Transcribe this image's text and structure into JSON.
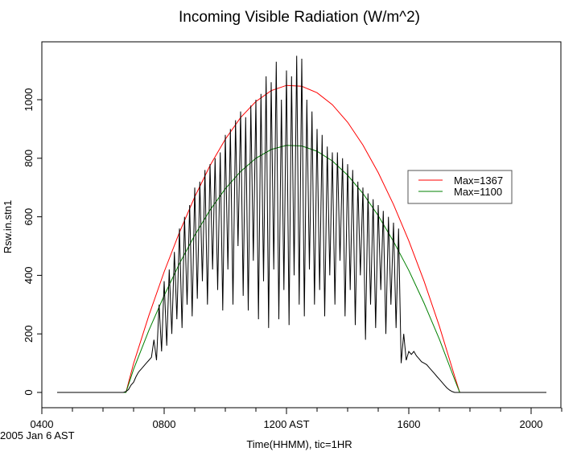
{
  "chart_data": {
    "type": "line",
    "title": "Incoming Visible Radiation (W/m^2)",
    "xlabel": "Time(HHMM), tic=1HR",
    "ylabel": "Rsw.in.stn1",
    "date_label": "2005 Jan  6 AST",
    "xlim": [
      "0400",
      "2100"
    ],
    "ylim": [
      -50,
      1200
    ],
    "x_tick_labels": [
      "0400",
      "0800",
      "1200 AST",
      "1600",
      "2000"
    ],
    "y_ticks": [
      0,
      200,
      400,
      600,
      800,
      1000
    ],
    "grid": false,
    "legend_placement": "right",
    "legend": [
      "Max=1367",
      "Max=1100"
    ],
    "colors": {
      "observed": "#000000",
      "max1367": "#ff0000",
      "max1100": "#008000"
    },
    "observed": {
      "start": "0430",
      "step_minutes": 5,
      "values": [
        0,
        0,
        0,
        0,
        0,
        0,
        0,
        0,
        0,
        0,
        0,
        0,
        0,
        0,
        0,
        0,
        0,
        0,
        0,
        0,
        0,
        0,
        0,
        0,
        0,
        0,
        0,
        3,
        10,
        25,
        35,
        55,
        70,
        80,
        90,
        100,
        110,
        120,
        180,
        110,
        300,
        140,
        380,
        160,
        420,
        200,
        480,
        250,
        560,
        220,
        600,
        300,
        640,
        260,
        700,
        320,
        720,
        380,
        760,
        300,
        780,
        420,
        800,
        350,
        820,
        280,
        880,
        420,
        900,
        300,
        930,
        500,
        960,
        330,
        940,
        280,
        980,
        450,
        1000,
        250,
        1020,
        380,
        1080,
        220,
        1060,
        420,
        1130,
        250,
        1000,
        350,
        1100,
        230,
        1080,
        400,
        1150,
        300,
        1140,
        260,
        1000,
        420,
        960,
        300,
        900,
        350,
        880,
        260,
        840,
        400,
        820,
        300,
        820,
        450,
        800,
        260,
        780,
        350,
        760,
        230,
        720,
        400,
        700,
        180,
        680,
        300,
        660,
        220,
        640,
        350,
        620,
        200,
        600,
        300,
        580,
        220,
        560,
        100,
        200,
        110,
        140,
        130,
        140,
        125,
        115,
        105,
        100,
        95,
        85,
        75,
        65,
        55,
        45,
        35,
        25,
        15,
        8,
        3,
        0,
        0,
        0,
        0,
        0,
        0,
        0,
        0,
        0,
        0,
        0,
        0,
        0,
        0,
        0,
        0,
        0,
        0,
        0,
        0,
        0,
        0,
        0,
        0,
        0,
        0,
        0,
        0,
        0,
        0,
        0,
        0,
        0,
        0,
        0,
        0,
        0
      ]
    },
    "series": [
      {
        "name": "Max=1367",
        "x": [
          "0430",
          "0645",
          "0700",
          "0730",
          "0800",
          "0830",
          "0900",
          "0930",
          "1000",
          "1030",
          "1100",
          "1130",
          "1200",
          "1230",
          "1300",
          "1330",
          "1400",
          "1430",
          "1500",
          "1530",
          "1600",
          "1630",
          "1700",
          "1730",
          "1740",
          "2025"
        ],
        "values": [
          0,
          0,
          99,
          263,
          412,
          547,
          668,
          775,
          865,
          939,
          994,
          1031,
          1049,
          1046,
          1024,
          983,
          923,
          845,
          751,
          642,
          518,
          380,
          226,
          55,
          0,
          0
        ]
      },
      {
        "name": "Max=1100",
        "x": [
          "0430",
          "0645",
          "0700",
          "0730",
          "0800",
          "0830",
          "0900",
          "0930",
          "1000",
          "1030",
          "1100",
          "1130",
          "1200",
          "1230",
          "1300",
          "1330",
          "1400",
          "1430",
          "1500",
          "1530",
          "1600",
          "1630",
          "1700",
          "1730",
          "1740",
          "2025"
        ],
        "values": [
          0,
          0,
          79,
          212,
          331,
          440,
          537,
          623,
          696,
          755,
          800,
          830,
          844,
          842,
          824,
          791,
          742,
          680,
          604,
          516,
          417,
          305,
          182,
          44,
          0,
          0
        ]
      }
    ]
  }
}
